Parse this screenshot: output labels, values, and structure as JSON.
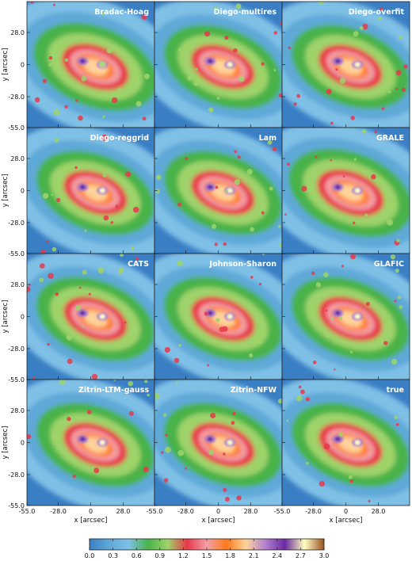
{
  "chart_data": {
    "type": "heatmap",
    "layout": {
      "rows": 4,
      "cols": 3
    },
    "panels": [
      {
        "title": "Bradac-Hoag"
      },
      {
        "title": "Diego-multires"
      },
      {
        "title": "Diego-overfit"
      },
      {
        "title": "Diego-reggrid"
      },
      {
        "title": "Lam"
      },
      {
        "title": "GRALE"
      },
      {
        "title": "CATS"
      },
      {
        "title": "Johnson-Sharon"
      },
      {
        "title": "GLAFIC"
      },
      {
        "title": "Zitrin-LTM-gauss"
      },
      {
        "title": "Zitrin-NFW"
      },
      {
        "title": "true"
      }
    ],
    "xlabel": "x [arcsec]",
    "ylabel": "y [arcsec]",
    "xlim": [
      -55,
      55
    ],
    "ylim": [
      -55,
      55
    ],
    "x_ticks": [
      "-55.0",
      "-28.0",
      "0",
      "28.0"
    ],
    "y_ticks": [
      "28.0",
      "0",
      "-28.0",
      "-55.0"
    ],
    "colorbar": {
      "min": 0.0,
      "max": 3.0,
      "ticks": [
        "0.0",
        "0.3",
        "0.6",
        "0.9",
        "1.2",
        "1.5",
        "1.8",
        "2.1",
        "2.4",
        "2.7",
        "3.0"
      ],
      "colors": [
        "#3a7fc4",
        "#7fc0e6",
        "#49b24a",
        "#9ed36a",
        "#e8384a",
        "#f2a0a8",
        "#ff7a1a",
        "#ffd39a",
        "#b080d0",
        "#6a2aa0",
        "#ffffc0",
        "#9a5020"
      ]
    }
  }
}
